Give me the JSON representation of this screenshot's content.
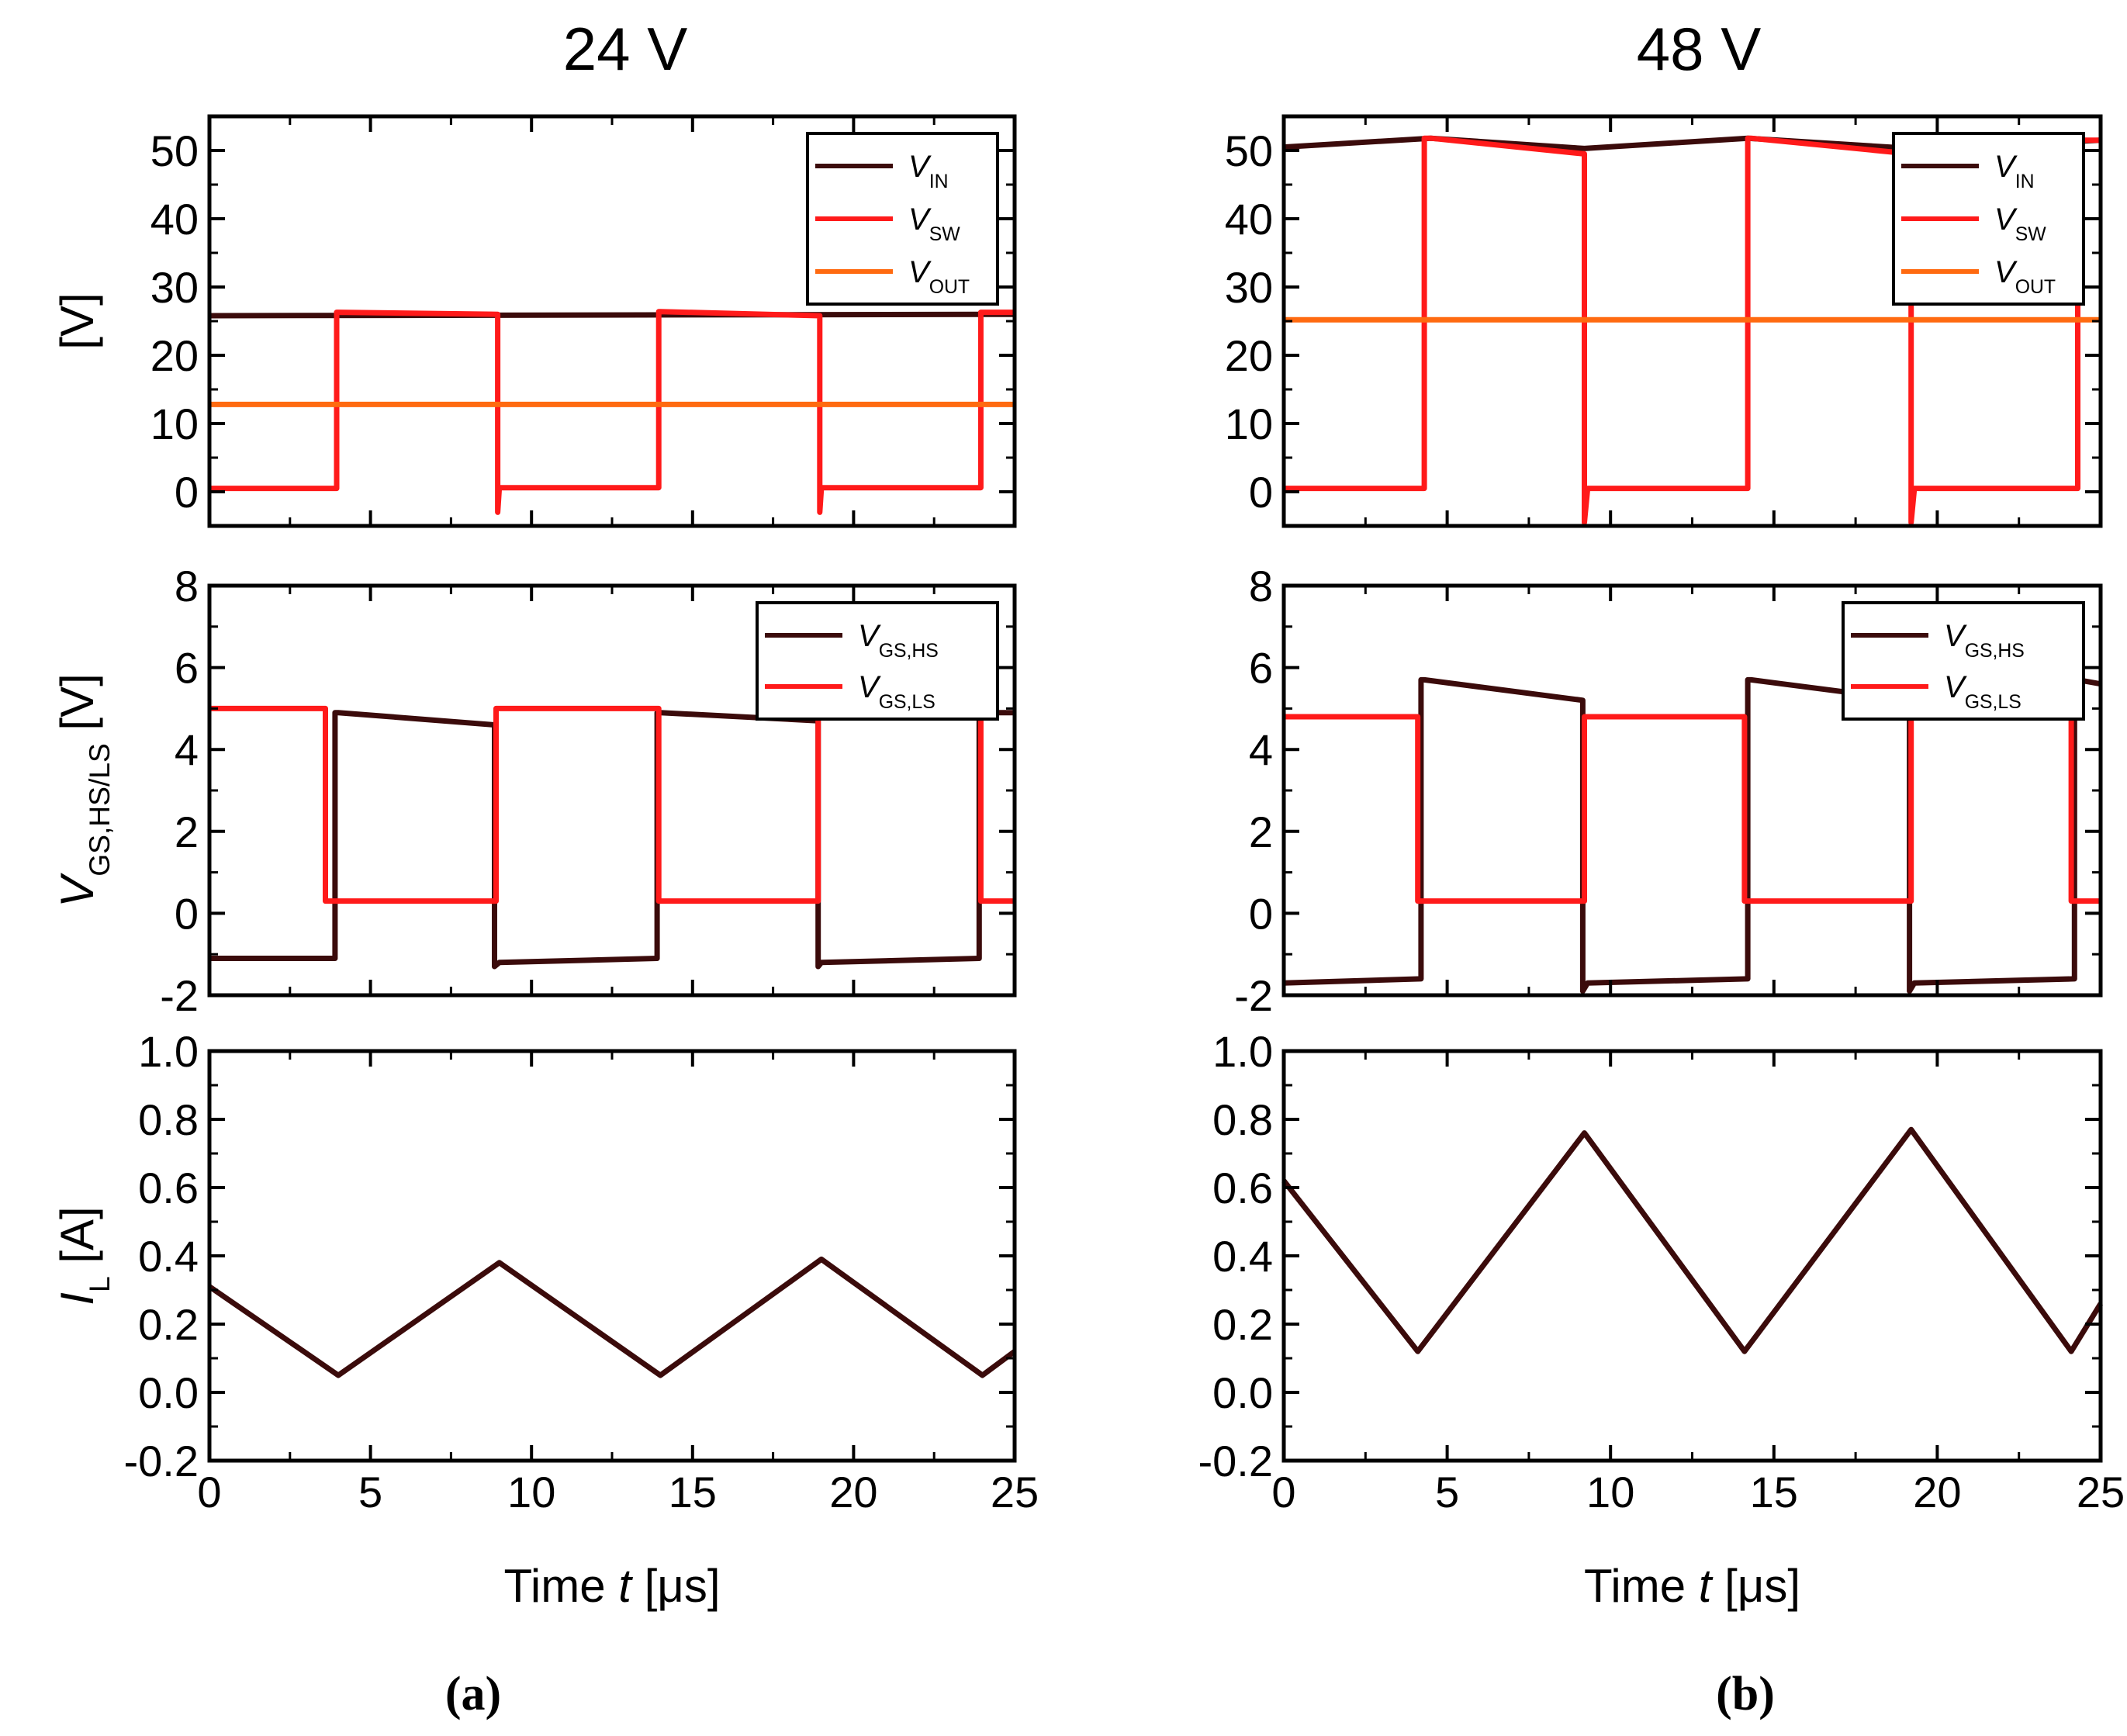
{
  "figure": {
    "titles": [
      "24 V",
      "48 V"
    ],
    "panel_labels": [
      "(a)",
      "(b)"
    ],
    "xlabel": {
      "main": "Time ",
      "var": "t",
      "unit": " [μs]"
    },
    "ylabels": {
      "top": "[V]",
      "mid": {
        "v": "V",
        "sub": "GS,HS/LS",
        "unit": " [V]"
      },
      "bot": {
        "v": "I",
        "sub": "L",
        "unit": " [A]"
      }
    },
    "legends": {
      "top": [
        {
          "v": "V",
          "sub": "IN"
        },
        {
          "v": "V",
          "sub": "SW"
        },
        {
          "v": "V",
          "sub": "OUT"
        }
      ],
      "mid": [
        {
          "v": "V",
          "sub": "GS,HS"
        },
        {
          "v": "V",
          "sub": "GS,LS"
        }
      ]
    }
  },
  "chart_data": [
    {
      "panel": "(a)",
      "row": "top",
      "type": "line",
      "title": "24 V",
      "xlim": [
        0,
        25
      ],
      "ylim": [
        -5,
        55
      ],
      "xticks": [
        0,
        5,
        10,
        15,
        20,
        25
      ],
      "yticks": [
        0,
        10,
        20,
        30,
        40,
        50
      ],
      "series": [
        {
          "name": "V_IN",
          "color": "#3b0b0b",
          "x": [
            0,
            25
          ],
          "y": [
            25.8,
            26.0
          ]
        },
        {
          "name": "V_SW",
          "color": "#ff1a1a",
          "x": [
            0,
            3.95,
            3.95,
            4.0,
            8.95,
            8.95,
            9.0,
            13.95,
            13.95,
            14.0,
            18.95,
            18.95,
            19.0,
            23.95,
            23.95,
            24.0,
            25
          ],
          "y": [
            0.5,
            0.5,
            26.3,
            26.3,
            26.0,
            -3.0,
            0.6,
            0.6,
            26.4,
            26.4,
            25.8,
            -3.0,
            0.6,
            0.6,
            26.3,
            26.3,
            26.3
          ]
        },
        {
          "name": "V_OUT",
          "color": "#ff6a10",
          "x": [
            0,
            25
          ],
          "y": [
            12.8,
            12.8
          ]
        }
      ]
    },
    {
      "panel": "(a)",
      "row": "mid",
      "type": "line",
      "xlim": [
        0,
        25
      ],
      "ylim": [
        -2,
        8
      ],
      "xticks": [
        0,
        5,
        10,
        15,
        20,
        25
      ],
      "yticks": [
        -2,
        0,
        2,
        4,
        6,
        8
      ],
      "series": [
        {
          "name": "V_GS,HS",
          "color": "#3b0b0b",
          "x": [
            0,
            3.9,
            3.9,
            4.0,
            8.85,
            8.85,
            9.0,
            13.9,
            13.9,
            14.0,
            18.9,
            18.9,
            19.0,
            23.9,
            23.9,
            24.0,
            25
          ],
          "y": [
            -1.1,
            -1.1,
            4.9,
            4.9,
            4.6,
            -1.3,
            -1.2,
            -1.1,
            4.9,
            4.9,
            4.7,
            -1.3,
            -1.2,
            -1.1,
            4.9,
            4.9,
            4.9
          ]
        },
        {
          "name": "V_GS,LS",
          "color": "#ff1a1a",
          "x": [
            0,
            3.6,
            3.6,
            8.9,
            8.9,
            13.95,
            13.95,
            18.9,
            18.9,
            23.95,
            23.95,
            25
          ],
          "y": [
            5.0,
            5.0,
            0.3,
            0.3,
            5.0,
            5.0,
            0.3,
            0.3,
            5.0,
            5.0,
            0.3,
            0.3
          ]
        }
      ]
    },
    {
      "panel": "(a)",
      "row": "bot",
      "type": "line",
      "xlim": [
        0,
        25
      ],
      "ylim": [
        -0.2,
        1.0
      ],
      "xticks": [
        0,
        5,
        10,
        15,
        20,
        25
      ],
      "yticks": [
        -0.2,
        0.0,
        0.2,
        0.4,
        0.6,
        0.8,
        1.0
      ],
      "xtick_labels": [
        "0",
        "5",
        "10",
        "15",
        "20",
        "25"
      ],
      "ytick_labels": [
        "-0.2",
        "0.0",
        "0.2",
        "0.4",
        "0.6",
        "0.8",
        "1.0"
      ],
      "series": [
        {
          "name": "I_L",
          "color": "#3b0b0b",
          "x": [
            0,
            4.0,
            9.0,
            14.0,
            19.0,
            24.0,
            25
          ],
          "y": [
            0.31,
            0.05,
            0.38,
            0.05,
            0.39,
            0.05,
            0.12
          ]
        }
      ]
    },
    {
      "panel": "(b)",
      "row": "top",
      "type": "line",
      "title": "48 V",
      "xlim": [
        0,
        25
      ],
      "ylim": [
        -5,
        55
      ],
      "xticks": [
        0,
        5,
        10,
        15,
        20,
        25
      ],
      "yticks": [
        0,
        10,
        20,
        30,
        40,
        50
      ],
      "series": [
        {
          "name": "V_IN",
          "color": "#3b0b0b",
          "x": [
            0,
            4.5,
            9.2,
            14.2,
            19.2,
            25
          ],
          "y": [
            50.5,
            51.8,
            50.3,
            51.8,
            50.3,
            51.5
          ]
        },
        {
          "name": "V_SW",
          "color": "#ff1a1a",
          "x": [
            0,
            4.3,
            4.3,
            4.5,
            9.2,
            9.2,
            9.3,
            14.2,
            14.2,
            14.3,
            19.2,
            19.2,
            19.3,
            24.3,
            24.3,
            24.4,
            25
          ],
          "y": [
            0.5,
            0.5,
            51.8,
            51.8,
            49.5,
            -4.5,
            0.5,
            0.5,
            51.8,
            51.8,
            49.5,
            -4.5,
            0.5,
            0.5,
            51.5,
            51.5,
            51.5
          ]
        },
        {
          "name": "V_OUT",
          "color": "#ff6a10",
          "x": [
            0,
            25
          ],
          "y": [
            25.2,
            25.2
          ]
        }
      ]
    },
    {
      "panel": "(b)",
      "row": "mid",
      "type": "line",
      "xlim": [
        0,
        25
      ],
      "ylim": [
        -2,
        8
      ],
      "xticks": [
        0,
        5,
        10,
        15,
        20,
        25
      ],
      "yticks": [
        -2,
        0,
        2,
        4,
        6,
        8
      ],
      "series": [
        {
          "name": "V_GS,HS",
          "color": "#3b0b0b",
          "x": [
            0,
            4.2,
            4.2,
            4.3,
            9.15,
            9.15,
            9.3,
            14.2,
            14.2,
            14.3,
            19.15,
            19.15,
            19.3,
            24.2,
            24.2,
            24.3,
            25
          ],
          "y": [
            -1.7,
            -1.6,
            5.7,
            5.7,
            5.2,
            -1.9,
            -1.7,
            -1.6,
            5.7,
            5.7,
            5.2,
            -1.9,
            -1.7,
            -1.6,
            5.7,
            5.7,
            5.6
          ]
        },
        {
          "name": "V_GS,LS",
          "color": "#ff1a1a",
          "x": [
            0,
            4.1,
            4.1,
            9.2,
            9.2,
            14.1,
            14.1,
            19.2,
            19.2,
            24.1,
            24.1,
            25
          ],
          "y": [
            4.8,
            4.8,
            0.3,
            0.3,
            4.8,
            4.8,
            0.3,
            0.3,
            4.8,
            4.8,
            0.3,
            0.3
          ]
        }
      ]
    },
    {
      "panel": "(b)",
      "row": "bot",
      "type": "line",
      "xlim": [
        0,
        25
      ],
      "ylim": [
        -0.2,
        1.0
      ],
      "xticks": [
        0,
        5,
        10,
        15,
        20,
        25
      ],
      "yticks": [
        -0.2,
        0.0,
        0.2,
        0.4,
        0.6,
        0.8,
        1.0
      ],
      "xtick_labels": [
        "0",
        "5",
        "10",
        "15",
        "20",
        "25"
      ],
      "ytick_labels": [
        "-0.2",
        "0.0",
        "0.2",
        "0.4",
        "0.6",
        "0.8",
        "1.0"
      ],
      "series": [
        {
          "name": "I_L",
          "color": "#3b0b0b",
          "x": [
            0,
            4.1,
            9.2,
            14.1,
            19.2,
            24.1,
            25
          ],
          "y": [
            0.62,
            0.12,
            0.76,
            0.12,
            0.77,
            0.12,
            0.26
          ]
        }
      ]
    }
  ]
}
